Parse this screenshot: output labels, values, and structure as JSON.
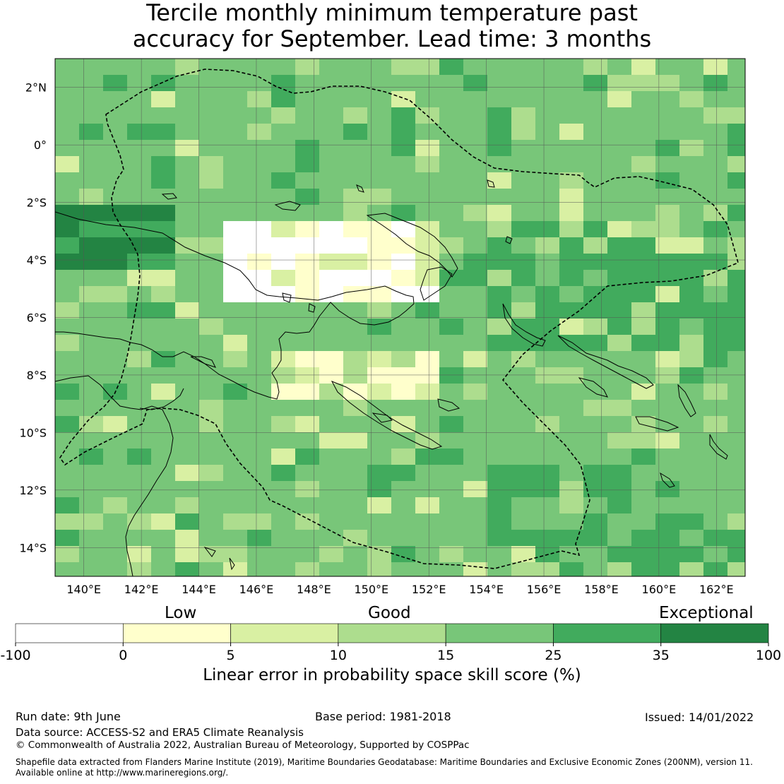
{
  "title": {
    "line1": "Tercile monthly minimum temperature past",
    "line2": "accuracy for September. Lead time: 3 months"
  },
  "map": {
    "lon_range": [
      139,
      163
    ],
    "lat_range": [
      -15,
      3
    ],
    "lon_ticks": [
      "140°E",
      "142°E",
      "144°E",
      "146°E",
      "148°E",
      "150°E",
      "152°E",
      "154°E",
      "156°E",
      "158°E",
      "160°E",
      "162°E"
    ],
    "lat_ticks": [
      "2°N",
      "0°",
      "2°S",
      "4°S",
      "6°S",
      "8°S",
      "10°S",
      "12°S",
      "14°S"
    ],
    "grid": true,
    "region_boundary": "dashed",
    "coastline": "solid"
  },
  "colorbar": {
    "categories": [
      "Low",
      "Good",
      "Exceptional"
    ],
    "tick_labels": [
      "-100",
      "0",
      "5",
      "10",
      "15",
      "25",
      "35",
      "100"
    ],
    "bins": [
      {
        "range": "-100 to 0",
        "color": "#ffffff"
      },
      {
        "range": "0 to 5",
        "color": "#ffffcc"
      },
      {
        "range": "5 to 10",
        "color": "#d9f0a3"
      },
      {
        "range": "10 to 15",
        "color": "#addd8e"
      },
      {
        "range": "15 to 25",
        "color": "#78c679"
      },
      {
        "range": "25 to 35",
        "color": "#41ab5d"
      },
      {
        "range": "35 to 100",
        "color": "#238443"
      }
    ],
    "label": "Linear error in probability space skill score (%)"
  },
  "footer": {
    "run_date": "Run date: 9th June",
    "base_period": "Base period: 1981-2018",
    "issued": "Issued: 14/01/2022",
    "data_source": "Data source: ACCESS-S2 and ERA5 Climate Reanalysis",
    "copyright": "© Commonwealth of Australia 2022, Australian Bureau of Meteorology, Supported by COSPPac",
    "shapefile_line1": "Shapefile data extracted from Flanders Marine Institute (2019), Maritime Boundaries Geodatabase: Maritime Boundaries and Exclusive Economic Zones (200NM), version 11.",
    "shapefile_line2": "Available online at http://www.marineregions.org/."
  }
}
